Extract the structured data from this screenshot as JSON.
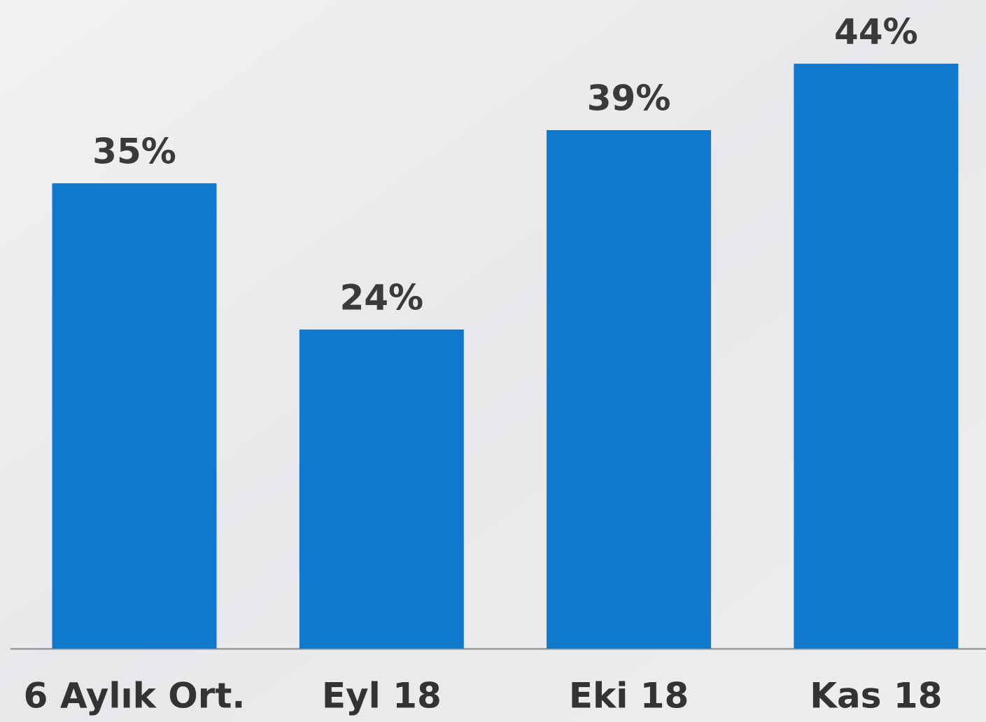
{
  "chart_data": {
    "type": "bar",
    "categories": [
      "6 Aylık Ort.",
      "Eyl 18",
      "Eki 18",
      "Kas 18"
    ],
    "values": [
      35,
      24,
      39,
      44
    ],
    "value_labels": [
      "35%",
      "24%",
      "39%",
      "44%"
    ],
    "color": "#1079cf"
  }
}
